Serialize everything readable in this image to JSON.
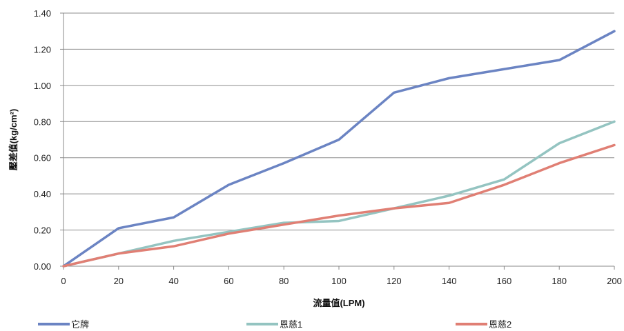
{
  "chart_data": {
    "type": "line",
    "title": "",
    "xlabel": "流量值(LPM)",
    "ylabel": "壓差值(kg/cm²)",
    "x": [
      0,
      20,
      40,
      60,
      80,
      100,
      120,
      140,
      160,
      180,
      200
    ],
    "x_ticks": [
      "0",
      "20",
      "40",
      "60",
      "80",
      "100",
      "120",
      "140",
      "160",
      "180",
      "200"
    ],
    "y_ticks": [
      "0.00",
      "0.20",
      "0.40",
      "0.60",
      "0.80",
      "1.00",
      "1.20",
      "1.40"
    ],
    "xlim": [
      0,
      200
    ],
    "ylim": [
      0,
      1.4
    ],
    "grid": "horizontal",
    "legend_position": "bottom",
    "series": [
      {
        "name": "它牌",
        "color": "#6b84c3",
        "values": [
          0.0,
          0.21,
          0.27,
          0.45,
          0.57,
          0.7,
          0.96,
          1.04,
          1.09,
          1.14,
          1.3
        ]
      },
      {
        "name": "恩慈1",
        "color": "#94c4c1",
        "values": [
          0.0,
          0.07,
          0.14,
          0.19,
          0.24,
          0.25,
          0.32,
          0.39,
          0.48,
          0.68,
          0.8
        ]
      },
      {
        "name": "恩慈2",
        "color": "#e07f74",
        "values": [
          0.0,
          0.07,
          0.11,
          0.18,
          0.23,
          0.28,
          0.32,
          0.35,
          0.45,
          0.57,
          0.67
        ]
      }
    ]
  }
}
